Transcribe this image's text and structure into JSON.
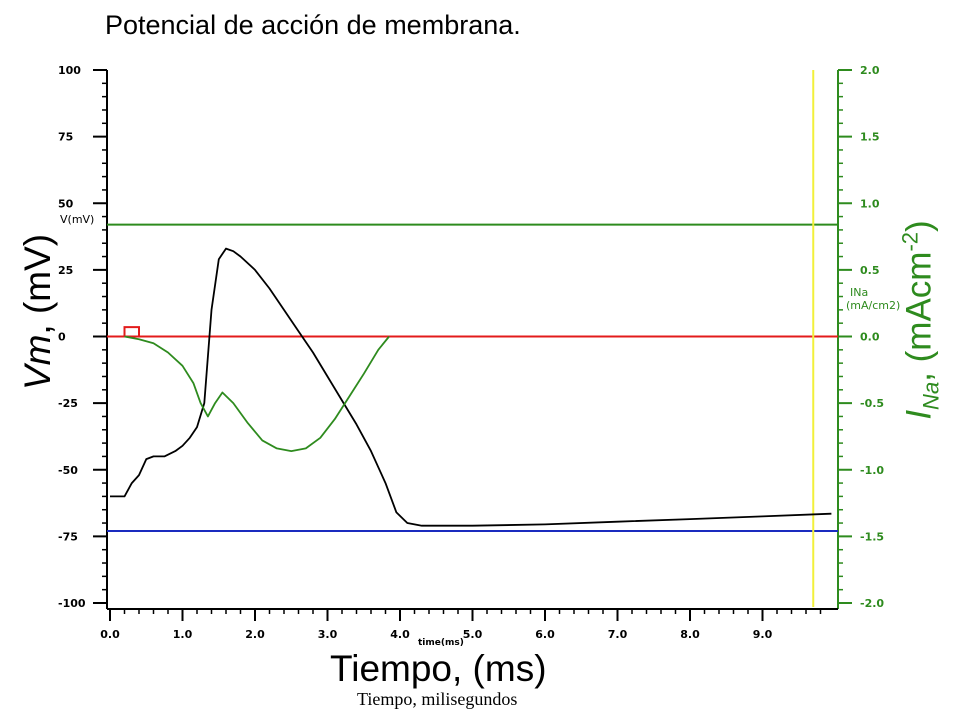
{
  "title": "Potencial de acción de membrana.",
  "caption": "Tiempo, milisegundos",
  "colors": {
    "vm": "#000000",
    "ina": "#2e8b1e",
    "stimulus": "#e31b1b",
    "resting": "#1a2bbf",
    "cursor": "#f2f03a",
    "axis": "#000000"
  },
  "chart_data": {
    "type": "line",
    "title": "Potencial de acción de membrana.",
    "xlabel": "Tiempo, (ms)",
    "xlabel_small": "time(ms)",
    "ylabel_left": {
      "main": "Vm",
      "rest": ", (mV)"
    },
    "ylabel_left_small": "V(mV)",
    "ylabel_right": {
      "I": "I",
      "sub": "Na",
      "mid": ", (mAcm",
      "sup": "-2",
      "end": ")"
    },
    "ylabel_right_small": [
      "INa",
      "(mA/cm2)"
    ],
    "xlim": [
      0,
      10
    ],
    "ylim_left": [
      -100,
      100
    ],
    "ylim_right": [
      -2,
      2
    ],
    "x_ticks": [
      "0.0",
      "1.0",
      "2.0",
      "3.0",
      "4.0",
      "5.0",
      "6.0",
      "7.0",
      "8.0",
      "9.0"
    ],
    "y_ticks_left": [
      "100",
      "75",
      "50",
      "25",
      "0",
      "-25",
      "-50",
      "-75",
      "-100"
    ],
    "y_ticks_right": [
      "2.0",
      "1.5",
      "1.0",
      "0.5",
      "0.0",
      "-0.5",
      "-1.0",
      "-1.5",
      "-2.0"
    ],
    "series": [
      {
        "key": "vm",
        "axis": "left",
        "x": [
          0,
          0.2,
          0.3,
          0.4,
          0.5,
          0.6,
          0.75,
          0.9,
          1.0,
          1.1,
          1.2,
          1.3,
          1.4,
          1.5,
          1.6,
          1.7,
          1.8,
          2.0,
          2.2,
          2.4,
          2.6,
          2.8,
          3.0,
          3.2,
          3.4,
          3.6,
          3.8,
          3.95,
          4.1,
          4.3,
          5.0,
          6.0,
          7.0,
          8.0,
          9.0,
          9.95
        ],
        "y": [
          -60,
          -60,
          -55,
          -52,
          -46,
          -45,
          -45,
          -43,
          -41,
          -38,
          -34,
          -25,
          10,
          29,
          33,
          32,
          30,
          25,
          18,
          10,
          2,
          -6,
          -15,
          -24,
          -33,
          -43,
          -55,
          -66,
          -70,
          -71,
          -71,
          -70.5,
          -69.5,
          -68.5,
          -67.5,
          -66.5
        ]
      },
      {
        "key": "ina",
        "axis": "right",
        "x": [
          0.2,
          0.4,
          0.6,
          0.8,
          1.0,
          1.15,
          1.25,
          1.35,
          1.45,
          1.55,
          1.7,
          1.9,
          2.1,
          2.3,
          2.5,
          2.7,
          2.9,
          3.1,
          3.3,
          3.5,
          3.7,
          3.85
        ],
        "y": [
          0,
          -0.02,
          -0.05,
          -0.12,
          -0.22,
          -0.35,
          -0.5,
          -0.6,
          -0.5,
          -0.42,
          -0.5,
          -0.65,
          -0.78,
          -0.84,
          -0.86,
          -0.84,
          -0.76,
          -0.62,
          -0.45,
          -0.28,
          -0.1,
          0
        ]
      }
    ],
    "reference_lines": [
      {
        "key": "resting",
        "axis": "left",
        "y": -73
      },
      {
        "key": "threshold",
        "axis": "right",
        "y": 0.84
      },
      {
        "key": "baseline",
        "axis": "left",
        "y": 0
      }
    ],
    "stimulus_pulse": {
      "x_start": 0.2,
      "x_end": 0.4,
      "height_mV": 3.5
    },
    "cursor_x": 9.7,
    "grid": false
  }
}
